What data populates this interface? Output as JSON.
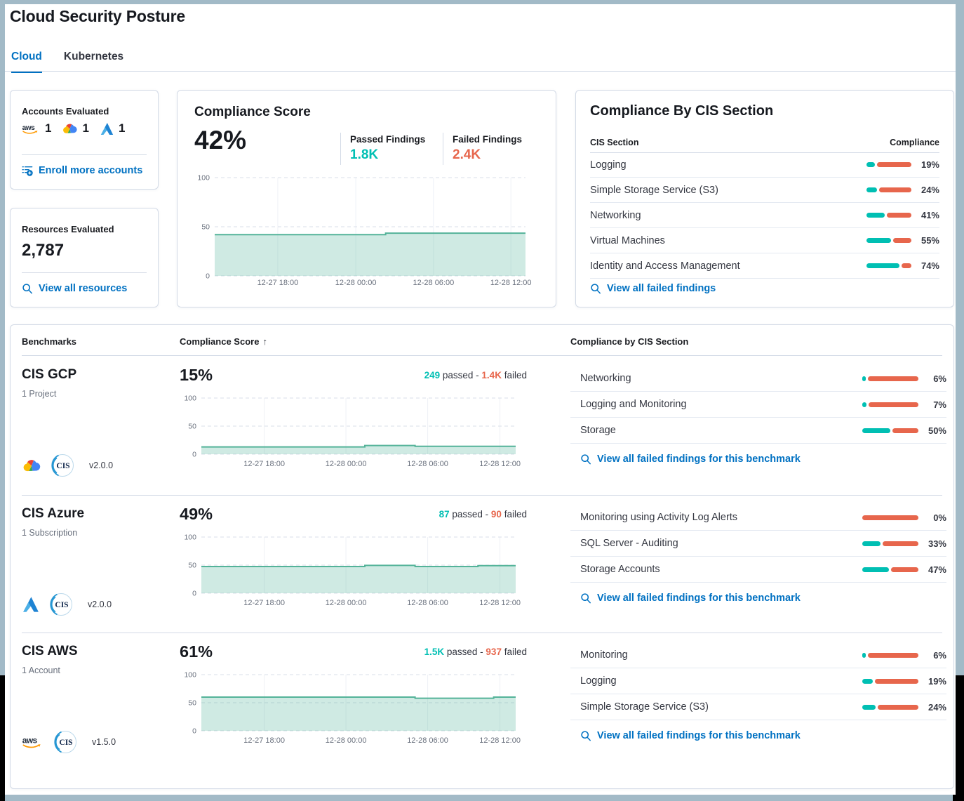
{
  "frame": {
    "border_color": "#a2bac7",
    "outside_color": "#000000"
  },
  "header": {
    "title": "Cloud Security Posture"
  },
  "tabs": [
    {
      "label": "Cloud",
      "active": true
    },
    {
      "label": "Kubernetes",
      "active": false
    }
  ],
  "accounts_card": {
    "title": "Accounts Evaluated",
    "providers": [
      {
        "name": "aws",
        "count": "1"
      },
      {
        "name": "gcp",
        "count": "1"
      },
      {
        "name": "azure",
        "count": "1"
      }
    ],
    "link": "Enroll more accounts"
  },
  "resources_card": {
    "title": "Resources Evaluated",
    "count": "2,787",
    "link": "View all resources"
  },
  "score_card": {
    "title": "Compliance Score",
    "score": "42%",
    "passed_label": "Passed Findings",
    "passed_value": "1.8K",
    "failed_label": "Failed Findings",
    "failed_value": "2.4K",
    "chart": {
      "type": "area",
      "y_max": 100,
      "y_ticks": [
        0,
        50,
        100
      ],
      "x_ticks": [
        "12-27 18:00",
        "12-28 00:00",
        "12-28 06:00",
        "12-28 12:00"
      ],
      "x_tick_pos": [
        0.203,
        0.454,
        0.704,
        0.953
      ],
      "points": [
        [
          0,
          42
        ],
        [
          0.55,
          43.5
        ]
      ]
    }
  },
  "cis_card": {
    "title": "Compliance By CIS Section",
    "col_section": "CIS Section",
    "col_compliance": "Compliance",
    "rows": [
      {
        "name": "Logging",
        "pct": 19,
        "label": "19%"
      },
      {
        "name": "Simple Storage Service (S3)",
        "pct": 24,
        "label": "24%"
      },
      {
        "name": "Networking",
        "pct": 41,
        "label": "41%"
      },
      {
        "name": "Virtual Machines",
        "pct": 55,
        "label": "55%"
      },
      {
        "name": "Identity and Access Management",
        "pct": 74,
        "label": "74%"
      }
    ],
    "link": "View all failed findings"
  },
  "benchmarks": {
    "col_benchmarks": "Benchmarks",
    "col_score": "Compliance Score",
    "sort_arrow": "↑",
    "col_sections": "Compliance by CIS Section",
    "row_link": "View all failed findings for this benchmark",
    "rows": [
      {
        "name": "CIS GCP",
        "scope": "1 Project",
        "provider": "gcp",
        "version": "v2.0.0",
        "score": "15%",
        "passed": "249",
        "passed_text": "passed -",
        "failed": "1.4K",
        "failed_text": "failed",
        "sections": [
          {
            "name": "Networking",
            "pct": 6,
            "label": "6%"
          },
          {
            "name": "Logging and Monitoring",
            "pct": 7,
            "label": "7%"
          },
          {
            "name": "Storage",
            "pct": 50,
            "label": "50%"
          }
        ],
        "chart": {
          "type": "area",
          "y_max": 100,
          "y_ticks": [
            0,
            50,
            100
          ],
          "x_ticks": [
            "12-27 18:00",
            "12-28 00:00",
            "12-28 06:00",
            "12-28 12:00"
          ],
          "x_tick_pos": [
            0.2,
            0.46,
            0.72,
            0.95
          ],
          "points": [
            [
              0,
              13
            ],
            [
              0.52,
              15.5
            ],
            [
              0.68,
              14
            ]
          ]
        }
      },
      {
        "name": "CIS Azure",
        "scope": "1 Subscription",
        "provider": "azure",
        "version": "v2.0.0",
        "score": "49%",
        "passed": "87",
        "passed_text": "passed -",
        "failed": "90",
        "failed_text": "failed",
        "sections": [
          {
            "name": "Monitoring using Activity Log Alerts",
            "pct": 0,
            "label": "0%"
          },
          {
            "name": "SQL Server - Auditing",
            "pct": 33,
            "label": "33%"
          },
          {
            "name": "Storage Accounts",
            "pct": 47,
            "label": "47%"
          }
        ],
        "chart": {
          "type": "area",
          "y_max": 100,
          "y_ticks": [
            0,
            50,
            100
          ],
          "x_ticks": [
            "12-27 18:00",
            "12-28 00:00",
            "12-28 06:00",
            "12-28 12:00"
          ],
          "x_tick_pos": [
            0.2,
            0.46,
            0.72,
            0.95
          ],
          "points": [
            [
              0,
              47.5
            ],
            [
              0.52,
              49.5
            ],
            [
              0.68,
              47.5
            ],
            [
              0.88,
              49
            ]
          ]
        }
      },
      {
        "name": "CIS AWS",
        "scope": "1 Account",
        "provider": "aws",
        "version": "v1.5.0",
        "score": "61%",
        "passed": "1.5K",
        "passed_text": "passed -",
        "failed": "937",
        "failed_text": "failed",
        "sections": [
          {
            "name": "Monitoring",
            "pct": 6,
            "label": "6%"
          },
          {
            "name": "Logging",
            "pct": 19,
            "label": "19%"
          },
          {
            "name": "Simple Storage Service (S3)",
            "pct": 24,
            "label": "24%"
          }
        ],
        "chart": {
          "type": "area",
          "y_max": 100,
          "y_ticks": [
            0,
            50,
            100
          ],
          "x_ticks": [
            "12-27 18:00",
            "12-28 00:00",
            "12-28 06:00",
            "12-28 12:00"
          ],
          "x_tick_pos": [
            0.2,
            0.46,
            0.72,
            0.95
          ],
          "points": [
            [
              0,
              60
            ],
            [
              0.68,
              58
            ],
            [
              0.93,
              60
            ]
          ]
        }
      }
    ]
  },
  "colors": {
    "passed": "#00BFB3",
    "failed": "#E7664C",
    "link": "#0071C2",
    "chart_line": "#54B399"
  }
}
